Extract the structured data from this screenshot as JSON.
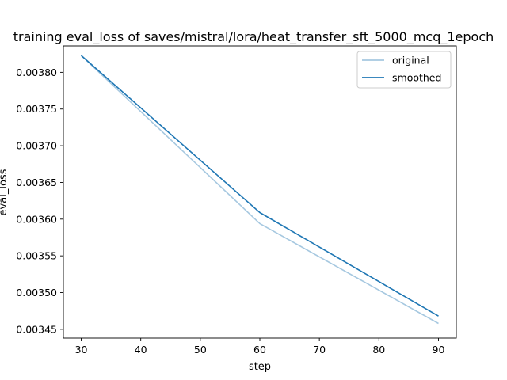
{
  "chart_data": {
    "type": "line",
    "title": "training eval_loss of saves/mistral/lora/heat_transfer_sft_5000_mcq_1epoch",
    "xlabel": "step",
    "ylabel": "eval_loss",
    "xlim": [
      27,
      93
    ],
    "ylim": [
      0.003438,
      0.003836
    ],
    "x_ticks": [
      30,
      40,
      50,
      60,
      70,
      80,
      90
    ],
    "y_ticks": [
      0.00345,
      0.0035,
      0.00355,
      0.0036,
      0.00365,
      0.0037,
      0.00375,
      0.0038
    ],
    "y_tick_labels": [
      "0.00345",
      "0.00350",
      "0.00355",
      "0.00360",
      "0.00365",
      "0.00370",
      "0.00375",
      "0.00380"
    ],
    "x_tick_labels": [
      "30",
      "40",
      "50",
      "60",
      "70",
      "80",
      "90"
    ],
    "grid": false,
    "legend_position": "top-right",
    "series": [
      {
        "name": "original",
        "color": "#a6c8e0",
        "x": [
          30,
          60,
          90
        ],
        "values": [
          0.003823,
          0.003594,
          0.003458
        ]
      },
      {
        "name": "smoothed",
        "color": "#1f77b4",
        "x": [
          30,
          60,
          90
        ],
        "values": [
          0.003823,
          0.003609,
          0.003468
        ]
      }
    ]
  }
}
